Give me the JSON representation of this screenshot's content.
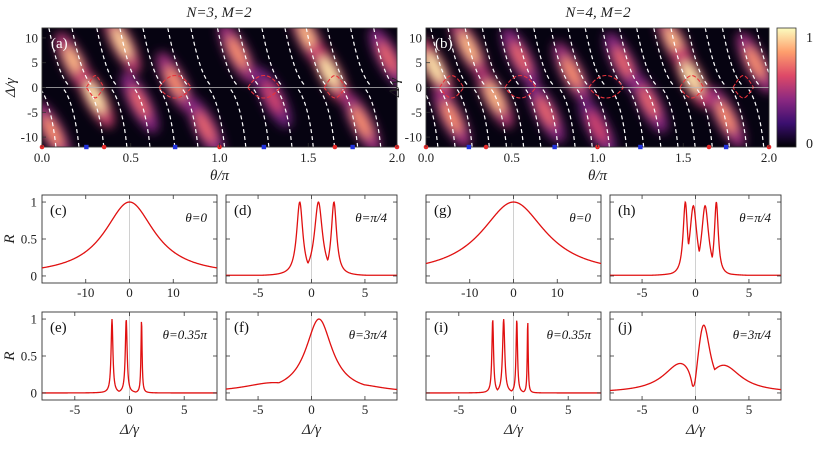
{
  "figure": {
    "top_titles": [
      "N=3, M=2",
      "N=4, M=2"
    ],
    "colorbar": {
      "ticks": [
        "1",
        "0"
      ],
      "colors": [
        "#000004",
        "#3b0f70",
        "#8c2981",
        "#de4968",
        "#fe9f6d",
        "#fcfdbf"
      ]
    }
  },
  "chart_data": [
    {
      "id": "a",
      "panel_label": "(a)",
      "type": "heatmap",
      "title": "N=3, M=2",
      "xlabel": "θ/π",
      "ylabel": "Δ/γ",
      "xlim": [
        0,
        2
      ],
      "ylim": [
        -12,
        12
      ],
      "xticks": [
        0.0,
        0.5,
        1.0,
        1.5,
        2.0
      ],
      "xticklabels": [
        "0.0",
        "0.5",
        "1.0",
        "1.5",
        "2.0"
      ],
      "yticks": [
        -10,
        -5,
        0,
        5,
        10
      ],
      "yticklabels": [
        "-10",
        "-5",
        "0",
        "5",
        "10"
      ],
      "red_markers_x": [
        0.0,
        0.35,
        1.0,
        1.65,
        2.0
      ],
      "blue_markers_x": [
        0.25,
        0.75,
        1.25,
        1.75
      ],
      "bright_bands": [
        {
          "theta": 0.06,
          "delta": -9,
          "intensity": 0.8
        },
        {
          "theta": 0.18,
          "delta": 5,
          "intensity": 0.9
        },
        {
          "theta": 0.3,
          "delta": -2,
          "intensity": 1.0
        },
        {
          "theta": 0.45,
          "delta": 9,
          "intensity": 0.95
        },
        {
          "theta": 0.55,
          "delta": -3,
          "intensity": 0.7
        },
        {
          "theta": 0.75,
          "delta": 1,
          "intensity": 0.8
        },
        {
          "theta": 0.92,
          "delta": -8,
          "intensity": 0.7
        },
        {
          "theta": 1.1,
          "delta": 7,
          "intensity": 0.8
        },
        {
          "theta": 1.3,
          "delta": -2,
          "intensity": 0.6
        },
        {
          "theta": 1.5,
          "delta": 10,
          "intensity": 0.9
        },
        {
          "theta": 1.62,
          "delta": 3,
          "intensity": 1.0
        },
        {
          "theta": 1.8,
          "delta": -7,
          "intensity": 0.8
        },
        {
          "theta": 1.95,
          "delta": 6,
          "intensity": 0.7
        }
      ],
      "dashed_white_theta": [
        0.05,
        0.18,
        0.32,
        0.45,
        0.58,
        0.72,
        0.85,
        1.0,
        1.12,
        1.25,
        1.38,
        1.5,
        1.62,
        1.75,
        1.88
      ],
      "dashed_red_loops": [
        {
          "theta": 0.3,
          "width": 0.1
        },
        {
          "theta": 0.75,
          "width": 0.18
        },
        {
          "theta": 1.25,
          "width": 0.18
        },
        {
          "theta": 1.65,
          "width": 0.12
        }
      ]
    },
    {
      "id": "b",
      "panel_label": "(b)",
      "type": "heatmap",
      "title": "N=4, M=2",
      "xlabel": "θ/π",
      "ylabel": "Δ/γ",
      "xlim": [
        0,
        2
      ],
      "ylim": [
        -12,
        12
      ],
      "xticks": [
        0.0,
        0.5,
        1.0,
        1.5,
        2.0
      ],
      "xticklabels": [
        "0.0",
        "0.5",
        "1.0",
        "1.5",
        "2.0"
      ],
      "yticks": [
        -10,
        -5,
        0,
        5,
        10
      ],
      "yticklabels": [
        "-10",
        "-5",
        "0",
        "5",
        "10"
      ],
      "red_markers_x": [
        0.0,
        0.35,
        1.0,
        1.65,
        2.0
      ],
      "blue_markers_x": [
        0.25,
        0.75,
        1.25,
        1.75
      ],
      "bright_bands": [
        {
          "theta": 0.05,
          "delta": 4,
          "intensity": 1.0
        },
        {
          "theta": 0.15,
          "delta": -6,
          "intensity": 0.8
        },
        {
          "theta": 0.25,
          "delta": 8,
          "intensity": 0.9
        },
        {
          "theta": 0.4,
          "delta": -2,
          "intensity": 0.9
        },
        {
          "theta": 0.55,
          "delta": 6,
          "intensity": 0.7
        },
        {
          "theta": 0.7,
          "delta": -5,
          "intensity": 0.7
        },
        {
          "theta": 0.85,
          "delta": 3,
          "intensity": 0.8
        },
        {
          "theta": 1.0,
          "delta": -8,
          "intensity": 0.6
        },
        {
          "theta": 1.15,
          "delta": 5,
          "intensity": 0.7
        },
        {
          "theta": 1.3,
          "delta": -3,
          "intensity": 0.7
        },
        {
          "theta": 1.45,
          "delta": 9,
          "intensity": 0.9
        },
        {
          "theta": 1.55,
          "delta": 2,
          "intensity": 1.0
        },
        {
          "theta": 1.75,
          "delta": -6,
          "intensity": 0.8
        },
        {
          "theta": 1.92,
          "delta": 5,
          "intensity": 0.8
        }
      ],
      "dashed_white_theta": [
        0.04,
        0.14,
        0.24,
        0.34,
        0.44,
        0.54,
        0.64,
        0.74,
        0.84,
        0.94,
        1.04,
        1.14,
        1.24,
        1.34,
        1.44,
        1.54,
        1.64,
        1.74,
        1.84,
        1.94
      ],
      "dashed_red_loops": [
        {
          "theta": 0.15,
          "width": 0.14
        },
        {
          "theta": 0.55,
          "width": 0.18
        },
        {
          "theta": 1.05,
          "width": 0.2
        },
        {
          "theta": 1.55,
          "width": 0.14
        },
        {
          "theta": 1.85,
          "width": 0.12
        }
      ]
    },
    {
      "id": "c",
      "panel_label": "(c)",
      "type": "line",
      "annotation": "θ=0",
      "xlabel": "",
      "ylabel": "R",
      "xlim": [
        -20,
        20
      ],
      "ylim": [
        0,
        1
      ],
      "xticks": [
        -10,
        0,
        10
      ],
      "xticklabels": [
        "-10",
        "0",
        "10"
      ],
      "yticks": [
        0,
        0.5,
        1
      ],
      "yticklabels": [
        "0",
        "0.5",
        "1"
      ],
      "peaks": [
        {
          "x": 0,
          "w": 7,
          "a": 1.0
        }
      ],
      "base": 0.0
    },
    {
      "id": "d",
      "panel_label": "(d)",
      "type": "line",
      "annotation": "θ=π/4",
      "xlabel": "",
      "ylabel": "",
      "xlim": [
        -8,
        8
      ],
      "ylim": [
        0,
        1
      ],
      "xticks": [
        -5,
        0,
        5
      ],
      "xticklabels": [
        "-5",
        "0",
        "5"
      ],
      "yticks": [
        0,
        0.5,
        1
      ],
      "yticklabels": [
        "",
        "",
        ""
      ],
      "peaks": [
        {
          "x": -1.1,
          "w": 0.35,
          "a": 1.0
        },
        {
          "x": 0.65,
          "w": 0.45,
          "a": 1.0
        },
        {
          "x": 2.1,
          "w": 0.3,
          "a": 1.0
        }
      ],
      "base": 0.01
    },
    {
      "id": "e",
      "panel_label": "(e)",
      "type": "line",
      "annotation": "θ=0.35π",
      "xlabel": "Δ/γ",
      "ylabel": "R",
      "xlim": [
        -8,
        8
      ],
      "ylim": [
        0,
        1
      ],
      "xticks": [
        -5,
        0,
        5
      ],
      "xticklabels": [
        "-5",
        "0",
        "5"
      ],
      "yticks": [
        0,
        0.5,
        1
      ],
      "yticklabels": [
        "0",
        "0.5",
        "1"
      ],
      "peaks": [
        {
          "x": -1.6,
          "w": 0.1,
          "a": 1.0
        },
        {
          "x": -0.3,
          "w": 0.1,
          "a": 1.0
        },
        {
          "x": 1.1,
          "w": 0.06,
          "a": 1.0
        }
      ],
      "base": 0.0
    },
    {
      "id": "f",
      "panel_label": "(f)",
      "type": "line",
      "annotation": "θ=3π/4",
      "xlabel": "Δ/γ",
      "ylabel": "",
      "xlim": [
        -8,
        8
      ],
      "ylim": [
        0,
        1
      ],
      "xticks": [
        -5,
        0,
        5
      ],
      "xticklabels": [
        "-5",
        "0",
        "5"
      ],
      "yticks": [
        0,
        0.5,
        1
      ],
      "yticklabels": [
        "",
        "",
        ""
      ],
      "peaks": [
        {
          "x": -3.5,
          "w": 3.5,
          "a": 0.14
        },
        {
          "x": 0.7,
          "w": 1.5,
          "a": 1.0
        },
        {
          "x": 4.0,
          "w": 3.2,
          "a": 0.12
        }
      ],
      "base": 0.0
    },
    {
      "id": "g",
      "panel_label": "(g)",
      "type": "line",
      "annotation": "θ=0",
      "xlabel": "",
      "ylabel": "",
      "xlim": [
        -20,
        20
      ],
      "ylim": [
        0,
        1
      ],
      "xticks": [
        -10,
        0,
        10
      ],
      "xticklabels": [
        "-10",
        "0",
        "10"
      ],
      "yticks": [
        0,
        0.5,
        1
      ],
      "yticklabels": [
        "",
        "",
        ""
      ],
      "peaks": [
        {
          "x": 0,
          "w": 9,
          "a": 1.0
        }
      ],
      "base": 0.0
    },
    {
      "id": "h",
      "panel_label": "(h)",
      "type": "line",
      "annotation": "θ=π/4",
      "xlabel": "",
      "ylabel": "",
      "xlim": [
        -8,
        8
      ],
      "ylim": [
        0,
        1
      ],
      "xticks": [
        -5,
        0,
        5
      ],
      "xticklabels": [
        "-5",
        "0",
        "5"
      ],
      "yticks": [
        0,
        0.5,
        1
      ],
      "yticklabels": [
        "",
        "",
        ""
      ],
      "peaks": [
        {
          "x": -0.95,
          "w": 0.25,
          "a": 1.0
        },
        {
          "x": -0.2,
          "w": 0.4,
          "a": 0.95
        },
        {
          "x": 0.9,
          "w": 0.4,
          "a": 0.95
        },
        {
          "x": 1.95,
          "w": 0.22,
          "a": 1.0
        }
      ],
      "base": 0.01
    },
    {
      "id": "i",
      "panel_label": "(i)",
      "type": "line",
      "annotation": "θ=0.35π",
      "xlabel": "Δ/γ",
      "ylabel": "",
      "xlim": [
        -8,
        8
      ],
      "ylim": [
        0,
        1
      ],
      "xticks": [
        -5,
        0,
        5
      ],
      "xticklabels": [
        "-5",
        "0",
        "5"
      ],
      "yticks": [
        0,
        0.5,
        1
      ],
      "yticklabels": [
        "",
        "",
        ""
      ],
      "peaks": [
        {
          "x": -1.9,
          "w": 0.09,
          "a": 1.0
        },
        {
          "x": -0.9,
          "w": 0.12,
          "a": 1.0
        },
        {
          "x": 0.3,
          "w": 0.08,
          "a": 1.0
        },
        {
          "x": 1.3,
          "w": 0.05,
          "a": 1.0
        }
      ],
      "base": 0.0
    },
    {
      "id": "j",
      "panel_label": "(j)",
      "type": "line",
      "annotation": "θ=3π/4",
      "xlabel": "Δ/γ",
      "ylabel": "",
      "xlim": [
        -8,
        8
      ],
      "ylim": [
        0,
        1
      ],
      "xticks": [
        -5,
        0,
        5
      ],
      "xticklabels": [
        "-5",
        "0",
        "5"
      ],
      "yticks": [
        0,
        0.5,
        1
      ],
      "yticklabels": [
        "",
        "",
        ""
      ],
      "peaks": [
        {
          "x": -1.3,
          "w": 2.0,
          "a": 0.42
        },
        {
          "x": 0.75,
          "w": 0.75,
          "a": 0.96
        },
        {
          "x": 2.6,
          "w": 2.0,
          "a": 0.38
        }
      ],
      "dip": {
        "x": -0.1,
        "w": 0.35,
        "a": 0.3
      },
      "base": 0.0
    }
  ]
}
